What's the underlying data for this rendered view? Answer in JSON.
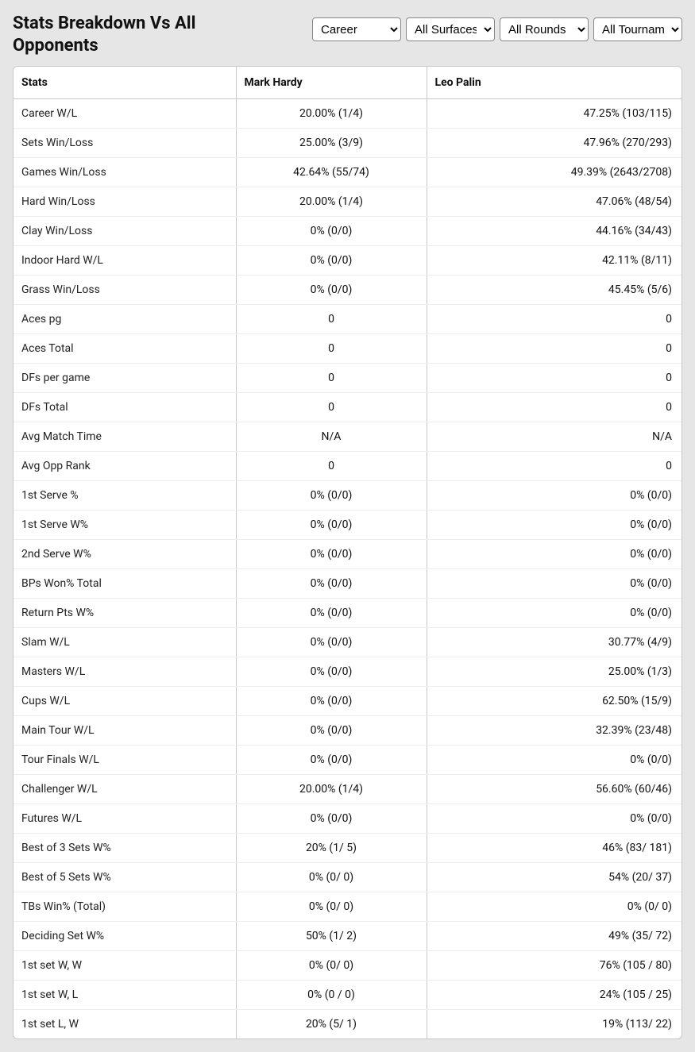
{
  "header": {
    "title": "Stats Breakdown Vs All Opponents"
  },
  "filters": {
    "period": {
      "selected": "Career",
      "options": [
        "Career"
      ]
    },
    "surface": {
      "selected": "All Surfaces",
      "options": [
        "All Surfaces"
      ]
    },
    "round": {
      "selected": "All Rounds",
      "options": [
        "All Rounds"
      ]
    },
    "tournament": {
      "selected": "All Tournaments",
      "options": [
        "All Tournaments"
      ]
    }
  },
  "table": {
    "columns": {
      "stats": "Stats",
      "p1": "Mark Hardy",
      "p2": "Leo Palin"
    },
    "rows": [
      {
        "label": "Career W/L",
        "p1": "20.00% (1/4)",
        "p2": "47.25% (103/115)"
      },
      {
        "label": "Sets Win/Loss",
        "p1": "25.00% (3/9)",
        "p2": "47.96% (270/293)"
      },
      {
        "label": "Games Win/Loss",
        "p1": "42.64% (55/74)",
        "p2": "49.39% (2643/2708)"
      },
      {
        "label": "Hard Win/Loss",
        "p1": "20.00% (1/4)",
        "p2": "47.06% (48/54)"
      },
      {
        "label": "Clay Win/Loss",
        "p1": "0% (0/0)",
        "p2": "44.16% (34/43)"
      },
      {
        "label": "Indoor Hard W/L",
        "p1": "0% (0/0)",
        "p2": "42.11% (8/11)"
      },
      {
        "label": "Grass Win/Loss",
        "p1": "0% (0/0)",
        "p2": "45.45% (5/6)"
      },
      {
        "label": "Aces pg",
        "p1": "0",
        "p2": "0"
      },
      {
        "label": "Aces Total",
        "p1": "0",
        "p2": "0"
      },
      {
        "label": "DFs per game",
        "p1": "0",
        "p2": "0"
      },
      {
        "label": "DFs Total",
        "p1": "0",
        "p2": "0"
      },
      {
        "label": "Avg Match Time",
        "p1": "N/A",
        "p2": "N/A"
      },
      {
        "label": "Avg Opp Rank",
        "p1": "0",
        "p2": "0"
      },
      {
        "label": "1st Serve %",
        "p1": "0% (0/0)",
        "p2": "0% (0/0)"
      },
      {
        "label": "1st Serve W%",
        "p1": "0% (0/0)",
        "p2": "0% (0/0)"
      },
      {
        "label": "2nd Serve W%",
        "p1": "0% (0/0)",
        "p2": "0% (0/0)"
      },
      {
        "label": "BPs Won% Total",
        "p1": "0% (0/0)",
        "p2": "0% (0/0)"
      },
      {
        "label": "Return Pts W%",
        "p1": "0% (0/0)",
        "p2": "0% (0/0)"
      },
      {
        "label": "Slam W/L",
        "p1": "0% (0/0)",
        "p2": "30.77% (4/9)"
      },
      {
        "label": "Masters W/L",
        "p1": "0% (0/0)",
        "p2": "25.00% (1/3)"
      },
      {
        "label": "Cups W/L",
        "p1": "0% (0/0)",
        "p2": "62.50% (15/9)"
      },
      {
        "label": "Main Tour W/L",
        "p1": "0% (0/0)",
        "p2": "32.39% (23/48)"
      },
      {
        "label": "Tour Finals W/L",
        "p1": "0% (0/0)",
        "p2": "0% (0/0)"
      },
      {
        "label": "Challenger W/L",
        "p1": "20.00% (1/4)",
        "p2": "56.60% (60/46)"
      },
      {
        "label": "Futures W/L",
        "p1": "0% (0/0)",
        "p2": "0% (0/0)"
      },
      {
        "label": "Best of 3 Sets W%",
        "p1": "20% (1/ 5)",
        "p2": "46% (83/ 181)"
      },
      {
        "label": "Best of 5 Sets W%",
        "p1": "0% (0/ 0)",
        "p2": "54% (20/ 37)"
      },
      {
        "label": "TBs Win% (Total)",
        "p1": "0% (0/ 0)",
        "p2": "0% (0/ 0)"
      },
      {
        "label": "Deciding Set W%",
        "p1": "50% (1/ 2)",
        "p2": "49% (35/ 72)"
      },
      {
        "label": "1st set W, W",
        "p1": "0% (0/ 0)",
        "p2": "76% (105 / 80)"
      },
      {
        "label": "1st set W, L",
        "p1": "0% (0 / 0)",
        "p2": "24% (105 / 25)"
      },
      {
        "label": "1st set L, W",
        "p1": "20% (5/ 1)",
        "p2": "19% (113/ 22)"
      }
    ]
  }
}
